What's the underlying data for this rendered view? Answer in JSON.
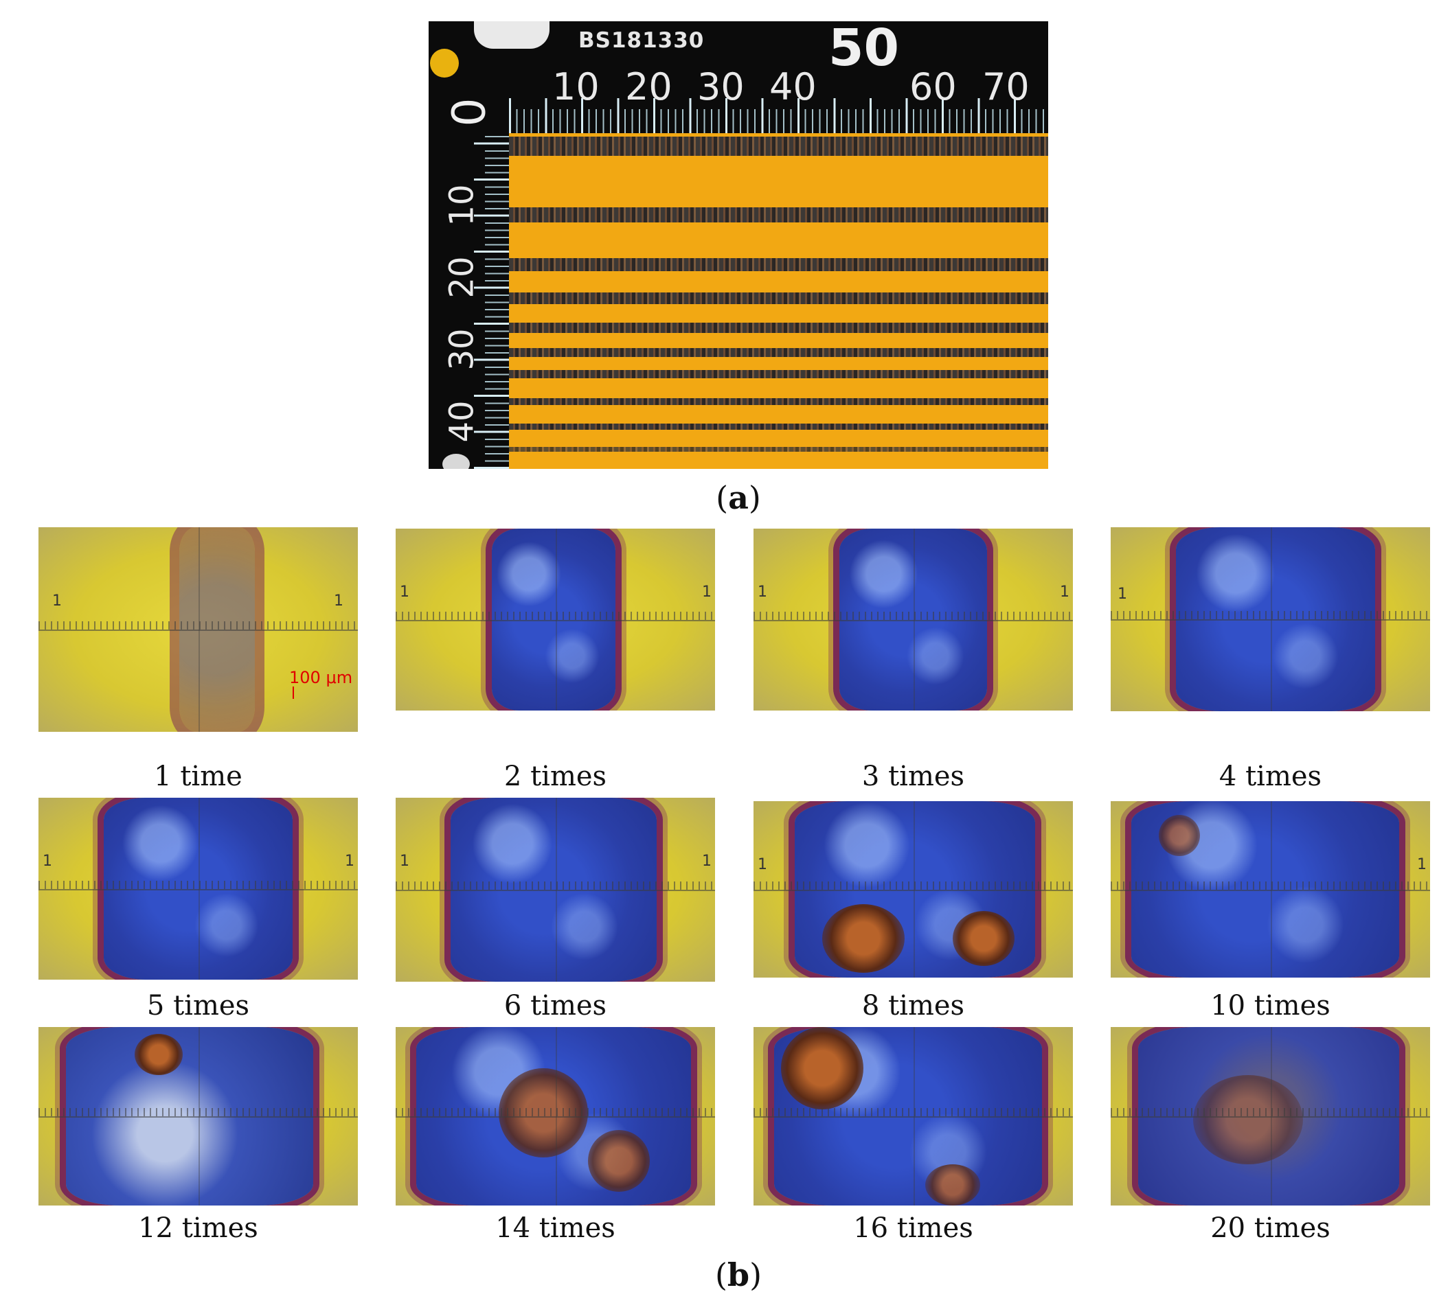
{
  "panel_a": {
    "ruler": {
      "serial": "BS181330",
      "highlight_mark": "50",
      "top_labels": [
        "0",
        "10",
        "20",
        "30",
        "40",
        "60",
        "70"
      ],
      "left_labels": [
        "10",
        "20",
        "30",
        "40"
      ]
    },
    "caption": {
      "open": "(",
      "letter": "a",
      "close": ")"
    }
  },
  "panel_b": {
    "scale_bar": "100 μm",
    "reticle_mark": "1",
    "tiles": [
      {
        "label": "1 time"
      },
      {
        "label": "2 times"
      },
      {
        "label": "3 times"
      },
      {
        "label": "4 times"
      },
      {
        "label": "5 times"
      },
      {
        "label": "6 times"
      },
      {
        "label": "8 times"
      },
      {
        "label": "10 times"
      },
      {
        "label": "12 times"
      },
      {
        "label": "14 times"
      },
      {
        "label": "16 times"
      },
      {
        "label": "20 times"
      }
    ],
    "caption": {
      "open": "(",
      "letter": "b",
      "close": ")"
    }
  },
  "colors": {
    "coating": "#f2a813",
    "ruler": "#0b0b0b",
    "groove_blue": "#2f47b8",
    "groove_edge": "#7a2a55",
    "scale_red": "#e00000"
  }
}
